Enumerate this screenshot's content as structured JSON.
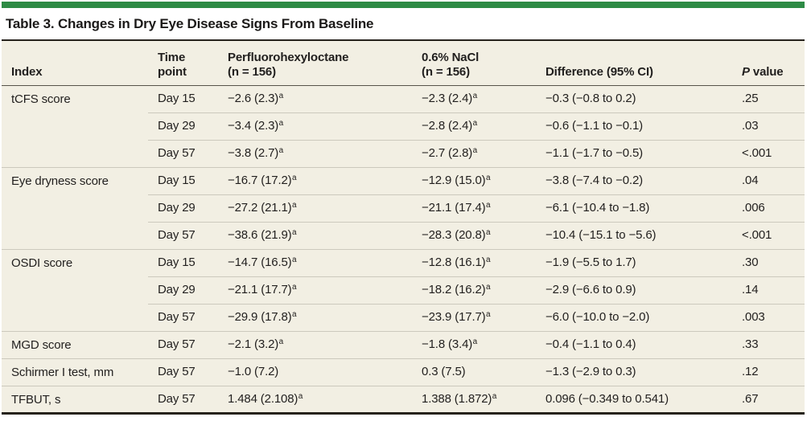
{
  "colors": {
    "accent_green": "#2e8b45",
    "table_bg": "#f2efe3",
    "row_line": "#ccc9bd",
    "header_line": "#56534a",
    "dark_rule": "#26221c",
    "text_color": "#211f1e"
  },
  "title": "Table 3. Changes in Dry Eye Disease Signs From Baseline",
  "table": {
    "header": {
      "index": "Index",
      "time_point": [
        "Time",
        "point"
      ],
      "pfh": [
        "Perfluorohexyloctane",
        "(n = 156)"
      ],
      "nacl": [
        "0.6% NaCl",
        "(n = 156)"
      ],
      "difference": "Difference (95% CI)",
      "p_italic": "P",
      "p_rest": " value"
    },
    "groups": [
      {
        "index": "tCFS score",
        "rows": [
          {
            "time": "Day 15",
            "pfh": "−2.6 (2.3)",
            "pfh_sup": "a",
            "nacl": "−2.3 (2.4)",
            "nacl_sup": "a",
            "diff": "−0.3 (−0.8 to 0.2)",
            "p": ".25"
          },
          {
            "time": "Day 29",
            "pfh": "−3.4 (2.3)",
            "pfh_sup": "a",
            "nacl": "−2.8 (2.4)",
            "nacl_sup": "a",
            "diff": "−0.6 (−1.1 to −0.1)",
            "p": ".03"
          },
          {
            "time": "Day 57",
            "pfh": "−3.8 (2.7)",
            "pfh_sup": "a",
            "nacl": "−2.7 (2.8)",
            "nacl_sup": "a",
            "diff": "−1.1 (−1.7 to −0.5)",
            "p": "<.001"
          }
        ]
      },
      {
        "index": "Eye dryness score",
        "rows": [
          {
            "time": "Day 15",
            "pfh": "−16.7 (17.2)",
            "pfh_sup": "a",
            "nacl": "−12.9 (15.0)",
            "nacl_sup": "a",
            "diff": "−3.8 (−7.4 to −0.2)",
            "p": ".04"
          },
          {
            "time": "Day 29",
            "pfh": "−27.2 (21.1)",
            "pfh_sup": "a",
            "nacl": "−21.1 (17.4)",
            "nacl_sup": "a",
            "diff": "−6.1 (−10.4 to −1.8)",
            "p": ".006"
          },
          {
            "time": "Day 57",
            "pfh": "−38.6 (21.9)",
            "pfh_sup": "a",
            "nacl": "−28.3 (20.8)",
            "nacl_sup": "a",
            "diff": "−10.4 (−15.1 to −5.6)",
            "p": "<.001"
          }
        ]
      },
      {
        "index": "OSDI score",
        "rows": [
          {
            "time": "Day 15",
            "pfh": "−14.7 (16.5)",
            "pfh_sup": "a",
            "nacl": "−12.8 (16.1)",
            "nacl_sup": "a",
            "diff": "−1.9 (−5.5 to 1.7)",
            "p": ".30"
          },
          {
            "time": "Day 29",
            "pfh": "−21.1 (17.7)",
            "pfh_sup": "a",
            "nacl": "−18.2 (16.2)",
            "nacl_sup": "a",
            "diff": "−2.9 (−6.6 to 0.9)",
            "p": ".14"
          },
          {
            "time": "Day 57",
            "pfh": "−29.9 (17.8)",
            "pfh_sup": "a",
            "nacl": "−23.9 (17.7)",
            "nacl_sup": "a",
            "diff": "−6.0 (−10.0 to −2.0)",
            "p": ".003"
          }
        ]
      },
      {
        "index": "MGD score",
        "rows": [
          {
            "time": "Day 57",
            "pfh": "−2.1 (3.2)",
            "pfh_sup": "a",
            "nacl": "−1.8 (3.4)",
            "nacl_sup": "a",
            "diff": "−0.4 (−1.1 to 0.4)",
            "p": ".33"
          }
        ]
      },
      {
        "index": "Schirmer I test, mm",
        "rows": [
          {
            "time": "Day 57",
            "pfh": "−1.0 (7.2)",
            "pfh_sup": "",
            "nacl": "0.3 (7.5)",
            "nacl_sup": "",
            "diff": "−1.3 (−2.9 to 0.3)",
            "p": ".12"
          }
        ]
      },
      {
        "index": "TFBUT, s",
        "rows": [
          {
            "time": "Day 57",
            "pfh": "1.484 (2.108)",
            "pfh_sup": "a",
            "nacl": "1.388 (1.872)",
            "nacl_sup": "a",
            "diff": "0.096 (−0.349 to 0.541)",
            "p": ".67"
          }
        ]
      }
    ]
  }
}
